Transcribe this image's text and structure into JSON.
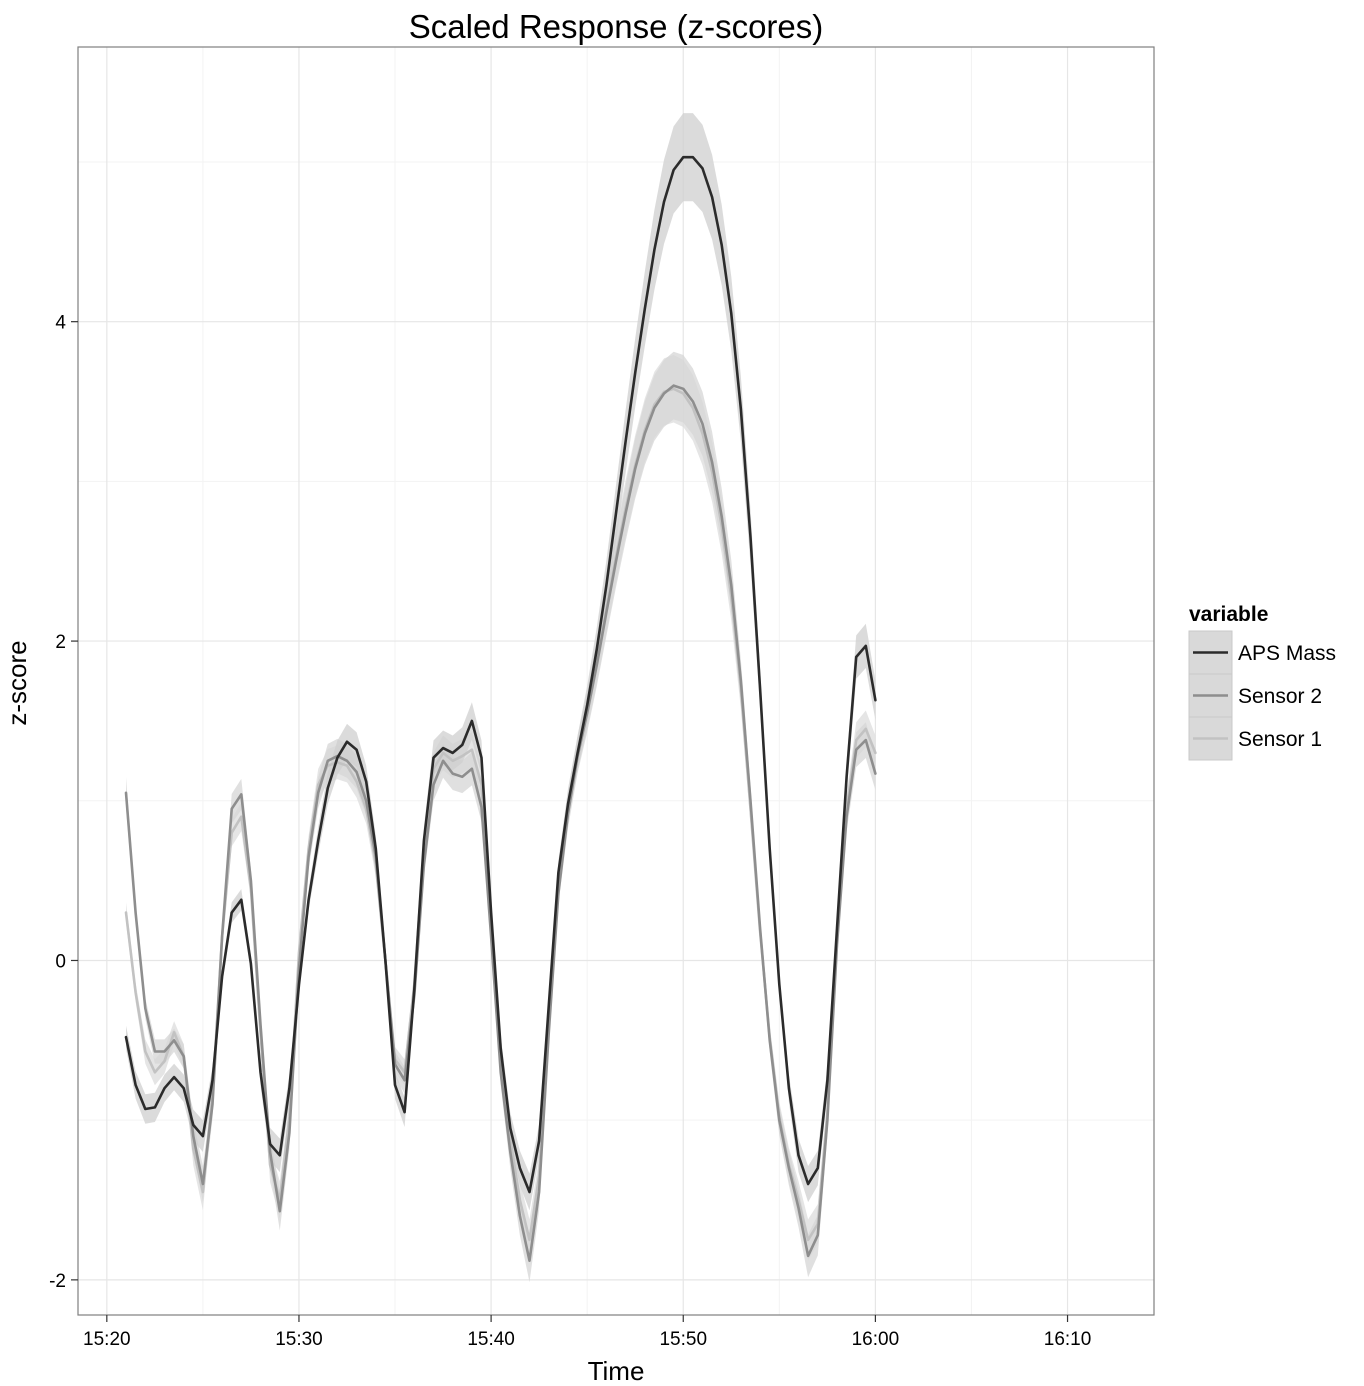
{
  "chart_data": {
    "type": "line",
    "title": "Scaled Response (z-scores)",
    "xlabel": "Time",
    "ylabel": "z-score",
    "x_ticks": [
      "15:20",
      "15:30",
      "15:40",
      "15:50",
      "16:00",
      "16:10"
    ],
    "y_ticks": [
      "-2",
      "0",
      "2",
      "4"
    ],
    "xlim_minutes": [
      "15:18.5",
      "16:14.5"
    ],
    "ylim": [
      -2.22,
      5.72
    ],
    "grid": true,
    "legend_title": "variable",
    "legend_position": "right",
    "ribbon": "confidence band around each series",
    "series": [
      {
        "name": "APS Mass",
        "color": "#2b2b2b",
        "band_color": "#cfcfcf",
        "points": [
          [
            "15:21",
            -0.48
          ],
          [
            "15:21.5",
            -0.78
          ],
          [
            "15:22",
            -0.93
          ],
          [
            "15:22.5",
            -0.92
          ],
          [
            "15:23",
            -0.8
          ],
          [
            "15:23.5",
            -0.73
          ],
          [
            "15:24",
            -0.8
          ],
          [
            "15:24.5",
            -1.03
          ],
          [
            "15:25",
            -1.1
          ],
          [
            "15:25.5",
            -0.75
          ],
          [
            "15:26",
            -0.1
          ],
          [
            "15:26.5",
            0.3
          ],
          [
            "15:27",
            0.38
          ],
          [
            "15:27.5",
            -0.02
          ],
          [
            "15:28",
            -0.7
          ],
          [
            "15:28.5",
            -1.15
          ],
          [
            "15:29",
            -1.22
          ],
          [
            "15:29.5",
            -0.8
          ],
          [
            "15:30",
            -0.15
          ],
          [
            "15:30.5",
            0.38
          ],
          [
            "15:31",
            0.75
          ],
          [
            "15:31.5",
            1.08
          ],
          [
            "15:32",
            1.27
          ],
          [
            "15:32.5",
            1.37
          ],
          [
            "15:33",
            1.32
          ],
          [
            "15:33.5",
            1.12
          ],
          [
            "15:34",
            0.7
          ],
          [
            "15:34.5",
            0.0
          ],
          [
            "15:35",
            -0.78
          ],
          [
            "15:35.5",
            -0.95
          ],
          [
            "15:36",
            -0.18
          ],
          [
            "15:36.5",
            0.75
          ],
          [
            "15:37",
            1.27
          ],
          [
            "15:37.5",
            1.33
          ],
          [
            "15:38",
            1.3
          ],
          [
            "15:38.5",
            1.35
          ],
          [
            "15:39",
            1.5
          ],
          [
            "15:39.5",
            1.27
          ],
          [
            "15:40",
            0.3
          ],
          [
            "15:40.5",
            -0.55
          ],
          [
            "15:41",
            -1.05
          ],
          [
            "15:41.5",
            -1.3
          ],
          [
            "15:42",
            -1.45
          ],
          [
            "15:42.5",
            -1.13
          ],
          [
            "15:43",
            -0.28
          ],
          [
            "15:43.5",
            0.55
          ],
          [
            "15:44",
            0.98
          ],
          [
            "15:44.5",
            1.3
          ],
          [
            "15:45",
            1.6
          ],
          [
            "15:45.5",
            1.95
          ],
          [
            "15:46",
            2.35
          ],
          [
            "15:46.5",
            2.8
          ],
          [
            "15:47",
            3.25
          ],
          [
            "15:47.5",
            3.68
          ],
          [
            "15:48",
            4.08
          ],
          [
            "15:48.5",
            4.45
          ],
          [
            "15:49",
            4.75
          ],
          [
            "15:49.5",
            4.95
          ],
          [
            "15:50",
            5.03
          ],
          [
            "15:50.5",
            5.03
          ],
          [
            "15:51",
            4.96
          ],
          [
            "15:51.5",
            4.78
          ],
          [
            "15:52",
            4.48
          ],
          [
            "15:52.5",
            4.05
          ],
          [
            "15:53",
            3.45
          ],
          [
            "15:53.5",
            2.65
          ],
          [
            "15:54",
            1.7
          ],
          [
            "15:54.5",
            0.7
          ],
          [
            "15:55",
            -0.15
          ],
          [
            "15:55.5",
            -0.8
          ],
          [
            "15:56",
            -1.22
          ],
          [
            "15:56.5",
            -1.4
          ],
          [
            "15:57",
            -1.3
          ],
          [
            "15:57.5",
            -0.75
          ],
          [
            "15:58",
            0.2
          ],
          [
            "15:58.5",
            1.15
          ],
          [
            "15:59",
            1.9
          ],
          [
            "15:59.5",
            1.97
          ],
          [
            "16:00",
            1.63
          ]
        ]
      },
      {
        "name": "Sensor 2",
        "color": "#8e8e8e",
        "band_color": "#d6d6d6",
        "points": [
          [
            "15:21",
            1.05
          ],
          [
            "15:21.5",
            0.3
          ],
          [
            "15:22",
            -0.3
          ],
          [
            "15:22.5",
            -0.57
          ],
          [
            "15:23",
            -0.57
          ],
          [
            "15:23.5",
            -0.5
          ],
          [
            "15:24",
            -0.6
          ],
          [
            "15:24.5",
            -1.1
          ],
          [
            "15:25",
            -1.4
          ],
          [
            "15:25.5",
            -0.9
          ],
          [
            "15:26",
            0.15
          ],
          [
            "15:26.5",
            0.95
          ],
          [
            "15:27",
            1.04
          ],
          [
            "15:27.5",
            0.5
          ],
          [
            "15:28",
            -0.4
          ],
          [
            "15:28.5",
            -1.2
          ],
          [
            "15:29",
            -1.57
          ],
          [
            "15:29.5",
            -1.08
          ],
          [
            "15:30",
            -0.05
          ],
          [
            "15:30.5",
            0.65
          ],
          [
            "15:31",
            1.05
          ],
          [
            "15:31.5",
            1.25
          ],
          [
            "15:32",
            1.28
          ],
          [
            "15:32.5",
            1.25
          ],
          [
            "15:33",
            1.18
          ],
          [
            "15:33.5",
            1.0
          ],
          [
            "15:34",
            0.65
          ],
          [
            "15:34.5",
            0.0
          ],
          [
            "15:35",
            -0.65
          ],
          [
            "15:35.5",
            -0.75
          ],
          [
            "15:36",
            -0.22
          ],
          [
            "15:36.5",
            0.6
          ],
          [
            "15:37",
            1.1
          ],
          [
            "15:37.5",
            1.25
          ],
          [
            "15:38",
            1.17
          ],
          [
            "15:38.5",
            1.15
          ],
          [
            "15:39",
            1.2
          ],
          [
            "15:39.5",
            0.96
          ],
          [
            "15:40",
            0.15
          ],
          [
            "15:40.5",
            -0.7
          ],
          [
            "15:41",
            -1.2
          ],
          [
            "15:41.5",
            -1.6
          ],
          [
            "15:42",
            -1.88
          ],
          [
            "15:42.5",
            -1.45
          ],
          [
            "15:43",
            -0.45
          ],
          [
            "15:43.5",
            0.42
          ],
          [
            "15:44",
            0.92
          ],
          [
            "15:44.5",
            1.28
          ],
          [
            "15:45",
            1.55
          ],
          [
            "15:45.5",
            1.85
          ],
          [
            "15:46",
            2.18
          ],
          [
            "15:46.5",
            2.5
          ],
          [
            "15:47",
            2.8
          ],
          [
            "15:47.5",
            3.08
          ],
          [
            "15:48",
            3.3
          ],
          [
            "15:48.5",
            3.46
          ],
          [
            "15:49",
            3.55
          ],
          [
            "15:49.5",
            3.6
          ],
          [
            "15:50",
            3.58
          ],
          [
            "15:50.5",
            3.5
          ],
          [
            "15:51",
            3.36
          ],
          [
            "15:51.5",
            3.12
          ],
          [
            "15:52",
            2.78
          ],
          [
            "15:52.5",
            2.35
          ],
          [
            "15:53",
            1.75
          ],
          [
            "15:53.5",
            1.0
          ],
          [
            "15:54",
            0.2
          ],
          [
            "15:54.5",
            -0.5
          ],
          [
            "15:55",
            -1.0
          ],
          [
            "15:55.5",
            -1.3
          ],
          [
            "15:56",
            -1.55
          ],
          [
            "15:56.5",
            -1.85
          ],
          [
            "15:57",
            -1.72
          ],
          [
            "15:57.5",
            -1.0
          ],
          [
            "15:58",
            0.1
          ],
          [
            "15:58.5",
            0.9
          ],
          [
            "15:59",
            1.32
          ],
          [
            "15:59.5",
            1.38
          ],
          [
            "16:00",
            1.17
          ]
        ]
      },
      {
        "name": "Sensor 1",
        "color": "#c2c2c2",
        "band_color": "#dcdcdc",
        "points": [
          [
            "15:21",
            0.3
          ],
          [
            "15:21.5",
            -0.2
          ],
          [
            "15:22",
            -0.57
          ],
          [
            "15:22.5",
            -0.7
          ],
          [
            "15:23",
            -0.63
          ],
          [
            "15:23.5",
            -0.45
          ],
          [
            "15:24",
            -0.6
          ],
          [
            "15:24.5",
            -1.18
          ],
          [
            "15:25",
            -1.45
          ],
          [
            "15:25.5",
            -0.85
          ],
          [
            "15:26",
            0.15
          ],
          [
            "15:26.5",
            0.8
          ],
          [
            "15:27",
            0.9
          ],
          [
            "15:27.5",
            0.45
          ],
          [
            "15:28",
            -0.45
          ],
          [
            "15:28.5",
            -1.28
          ],
          [
            "15:29",
            -1.5
          ],
          [
            "15:29.5",
            -0.98
          ],
          [
            "15:30",
            0.05
          ],
          [
            "15:30.5",
            0.7
          ],
          [
            "15:31",
            1.1
          ],
          [
            "15:31.5",
            1.22
          ],
          [
            "15:32",
            1.24
          ],
          [
            "15:32.5",
            1.22
          ],
          [
            "15:33",
            1.12
          ],
          [
            "15:33.5",
            0.95
          ],
          [
            "15:34",
            0.6
          ],
          [
            "15:34.5",
            0.0
          ],
          [
            "15:35",
            -0.62
          ],
          [
            "15:35.5",
            -0.7
          ],
          [
            "15:36",
            -0.15
          ],
          [
            "15:36.5",
            0.7
          ],
          [
            "15:37",
            1.2
          ],
          [
            "15:37.5",
            1.3
          ],
          [
            "15:38",
            1.25
          ],
          [
            "15:38.5",
            1.28
          ],
          [
            "15:39",
            1.32
          ],
          [
            "15:39.5",
            1.1
          ],
          [
            "15:40",
            0.25
          ],
          [
            "15:40.5",
            -0.65
          ],
          [
            "15:41",
            -1.12
          ],
          [
            "15:41.5",
            -1.5
          ],
          [
            "15:42",
            -1.75
          ],
          [
            "15:42.5",
            -1.35
          ],
          [
            "15:43",
            -0.38
          ],
          [
            "15:43.5",
            0.45
          ],
          [
            "15:44",
            0.95
          ],
          [
            "15:44.5",
            1.3
          ],
          [
            "15:45",
            1.57
          ],
          [
            "15:45.5",
            1.87
          ],
          [
            "15:46",
            2.2
          ],
          [
            "15:46.5",
            2.53
          ],
          [
            "15:47",
            2.83
          ],
          [
            "15:47.5",
            3.1
          ],
          [
            "15:48",
            3.32
          ],
          [
            "15:48.5",
            3.48
          ],
          [
            "15:49",
            3.56
          ],
          [
            "15:49.5",
            3.58
          ],
          [
            "15:50",
            3.55
          ],
          [
            "15:50.5",
            3.46
          ],
          [
            "15:51",
            3.3
          ],
          [
            "15:51.5",
            3.06
          ],
          [
            "15:52",
            2.72
          ],
          [
            "15:52.5",
            2.28
          ],
          [
            "15:53",
            1.7
          ],
          [
            "15:53.5",
            0.95
          ],
          [
            "15:54",
            0.18
          ],
          [
            "15:54.5",
            -0.48
          ],
          [
            "15:55",
            -0.98
          ],
          [
            "15:55.5",
            -1.28
          ],
          [
            "15:56",
            -1.5
          ],
          [
            "15:56.5",
            -1.75
          ],
          [
            "15:57",
            -1.65
          ],
          [
            "15:57.5",
            -0.95
          ],
          [
            "15:58",
            0.15
          ],
          [
            "15:58.5",
            0.95
          ],
          [
            "15:59",
            1.38
          ],
          [
            "15:59.5",
            1.45
          ],
          [
            "16:00",
            1.3
          ]
        ]
      }
    ]
  }
}
